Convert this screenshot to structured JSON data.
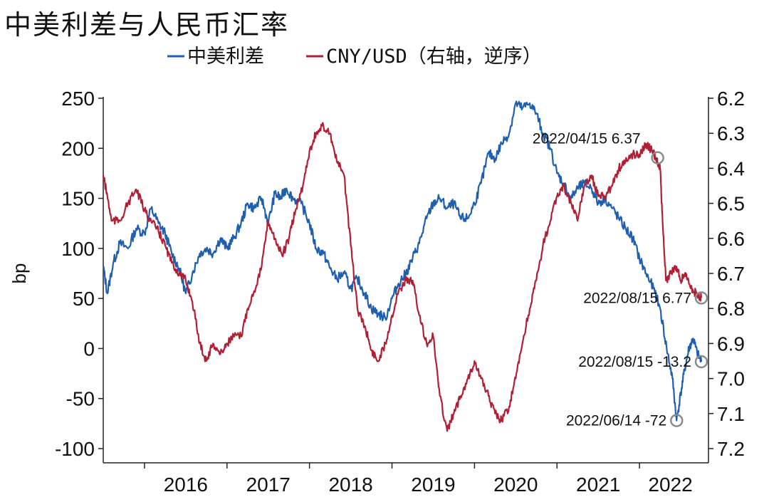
{
  "title": "中美利差与人民币汇率",
  "chart_data": {
    "type": "line",
    "title": "中美利差与人民币汇率",
    "ylabel": "bp",
    "ylim": [
      -100,
      250
    ],
    "yticks": [
      250,
      200,
      150,
      100,
      50,
      0,
      -50,
      -100
    ],
    "y2lim": [
      6.2,
      7.2
    ],
    "y2_inverted": true,
    "y2ticks": [
      "6.2",
      "6.3",
      "6.4",
      "6.5",
      "6.6",
      "6.7",
      "6.8",
      "6.9",
      "7.0",
      "7.1",
      "7.2"
    ],
    "x_range": [
      2015.5,
      2022.75
    ],
    "xticks": [
      "2016",
      "2017",
      "2018",
      "2019",
      "2020",
      "2021",
      "2022"
    ],
    "xtick_positions": [
      2016,
      2017,
      2018,
      2019,
      2020,
      2021,
      2022
    ],
    "grid": false,
    "legend_placement": "top-center",
    "series": [
      {
        "name": "中美利差",
        "axis": "left",
        "color": "#1f5fb0",
        "points": [
          [
            2015.5,
            82
          ],
          [
            2015.55,
            55
          ],
          [
            2015.62,
            85
          ],
          [
            2015.7,
            105
          ],
          [
            2015.8,
            100
          ],
          [
            2015.9,
            120
          ],
          [
            2016.0,
            115
          ],
          [
            2016.08,
            140
          ],
          [
            2016.17,
            125
          ],
          [
            2016.25,
            115
          ],
          [
            2016.33,
            95
          ],
          [
            2016.42,
            80
          ],
          [
            2016.5,
            55
          ],
          [
            2016.58,
            75
          ],
          [
            2016.67,
            95
          ],
          [
            2016.75,
            100
          ],
          [
            2016.83,
            95
          ],
          [
            2016.92,
            110
          ],
          [
            2017.0,
            100
          ],
          [
            2017.08,
            110
          ],
          [
            2017.17,
            125
          ],
          [
            2017.25,
            145
          ],
          [
            2017.33,
            140
          ],
          [
            2017.42,
            150
          ],
          [
            2017.5,
            125
          ],
          [
            2017.58,
            155
          ],
          [
            2017.65,
            150
          ],
          [
            2017.72,
            160
          ],
          [
            2017.8,
            150
          ],
          [
            2017.9,
            145
          ],
          [
            2018.0,
            125
          ],
          [
            2018.08,
            100
          ],
          [
            2018.17,
            95
          ],
          [
            2018.25,
            80
          ],
          [
            2018.33,
            70
          ],
          [
            2018.42,
            75
          ],
          [
            2018.5,
            60
          ],
          [
            2018.58,
            70
          ],
          [
            2018.67,
            55
          ],
          [
            2018.75,
            40
          ],
          [
            2018.83,
            35
          ],
          [
            2018.92,
            30
          ],
          [
            2019.0,
            50
          ],
          [
            2019.08,
            65
          ],
          [
            2019.17,
            75
          ],
          [
            2019.25,
            90
          ],
          [
            2019.33,
            105
          ],
          [
            2019.42,
            130
          ],
          [
            2019.5,
            145
          ],
          [
            2019.58,
            150
          ],
          [
            2019.67,
            140
          ],
          [
            2019.75,
            145
          ],
          [
            2019.83,
            130
          ],
          [
            2019.92,
            130
          ],
          [
            2020.0,
            145
          ],
          [
            2020.08,
            165
          ],
          [
            2020.17,
            195
          ],
          [
            2020.25,
            190
          ],
          [
            2020.33,
            205
          ],
          [
            2020.42,
            215
          ],
          [
            2020.5,
            245
          ],
          [
            2020.58,
            240
          ],
          [
            2020.67,
            245
          ],
          [
            2020.75,
            235
          ],
          [
            2020.83,
            215
          ],
          [
            2020.92,
            200
          ],
          [
            2021.0,
            175
          ],
          [
            2021.08,
            165
          ],
          [
            2021.17,
            150
          ],
          [
            2021.25,
            160
          ],
          [
            2021.33,
            165
          ],
          [
            2021.42,
            160
          ],
          [
            2021.5,
            145
          ],
          [
            2021.58,
            150
          ],
          [
            2021.67,
            140
          ],
          [
            2021.75,
            130
          ],
          [
            2021.83,
            120
          ],
          [
            2021.92,
            110
          ],
          [
            2022.0,
            90
          ],
          [
            2022.08,
            75
          ],
          [
            2022.17,
            60
          ],
          [
            2022.25,
            40
          ],
          [
            2022.33,
            0
          ],
          [
            2022.4,
            -30
          ],
          [
            2022.45,
            -72
          ],
          [
            2022.5,
            -45
          ],
          [
            2022.55,
            -20
          ],
          [
            2022.6,
            0
          ],
          [
            2022.65,
            10
          ],
          [
            2022.7,
            -5
          ],
          [
            2022.75,
            -13.2
          ]
        ]
      },
      {
        "name": "CNY/USD（右轴，逆序）",
        "axis": "right",
        "color": "#b01f34",
        "points": [
          [
            2015.5,
            6.42
          ],
          [
            2015.55,
            6.48
          ],
          [
            2015.6,
            6.55
          ],
          [
            2015.7,
            6.55
          ],
          [
            2015.8,
            6.5
          ],
          [
            2015.9,
            6.46
          ],
          [
            2016.0,
            6.52
          ],
          [
            2016.08,
            6.55
          ],
          [
            2016.17,
            6.58
          ],
          [
            2016.25,
            6.62
          ],
          [
            2016.33,
            6.67
          ],
          [
            2016.42,
            6.7
          ],
          [
            2016.5,
            6.72
          ],
          [
            2016.58,
            6.78
          ],
          [
            2016.67,
            6.9
          ],
          [
            2016.75,
            6.95
          ],
          [
            2016.83,
            6.9
          ],
          [
            2016.92,
            6.93
          ],
          [
            2017.0,
            6.9
          ],
          [
            2017.08,
            6.88
          ],
          [
            2017.17,
            6.88
          ],
          [
            2017.25,
            6.8
          ],
          [
            2017.33,
            6.75
          ],
          [
            2017.42,
            6.68
          ],
          [
            2017.5,
            6.55
          ],
          [
            2017.58,
            6.6
          ],
          [
            2017.67,
            6.65
          ],
          [
            2017.75,
            6.6
          ],
          [
            2017.83,
            6.52
          ],
          [
            2017.92,
            6.45
          ],
          [
            2018.0,
            6.35
          ],
          [
            2018.08,
            6.3
          ],
          [
            2018.17,
            6.28
          ],
          [
            2018.25,
            6.3
          ],
          [
            2018.33,
            6.38
          ],
          [
            2018.42,
            6.42
          ],
          [
            2018.5,
            6.62
          ],
          [
            2018.58,
            6.8
          ],
          [
            2018.67,
            6.85
          ],
          [
            2018.75,
            6.92
          ],
          [
            2018.83,
            6.95
          ],
          [
            2018.92,
            6.9
          ],
          [
            2019.0,
            6.82
          ],
          [
            2019.08,
            6.75
          ],
          [
            2019.17,
            6.72
          ],
          [
            2019.25,
            6.72
          ],
          [
            2019.33,
            6.82
          ],
          [
            2019.42,
            6.9
          ],
          [
            2019.5,
            6.88
          ],
          [
            2019.58,
            7.05
          ],
          [
            2019.67,
            7.15
          ],
          [
            2019.75,
            7.1
          ],
          [
            2019.83,
            7.05
          ],
          [
            2019.92,
            7.0
          ],
          [
            2020.0,
            6.95
          ],
          [
            2020.08,
            7.0
          ],
          [
            2020.17,
            7.05
          ],
          [
            2020.25,
            7.1
          ],
          [
            2020.33,
            7.12
          ],
          [
            2020.42,
            7.08
          ],
          [
            2020.5,
            7.0
          ],
          [
            2020.58,
            6.9
          ],
          [
            2020.67,
            6.8
          ],
          [
            2020.75,
            6.72
          ],
          [
            2020.83,
            6.62
          ],
          [
            2020.92,
            6.55
          ],
          [
            2021.0,
            6.48
          ],
          [
            2021.08,
            6.45
          ],
          [
            2021.17,
            6.5
          ],
          [
            2021.25,
            6.55
          ],
          [
            2021.33,
            6.45
          ],
          [
            2021.42,
            6.42
          ],
          [
            2021.5,
            6.48
          ],
          [
            2021.58,
            6.48
          ],
          [
            2021.67,
            6.45
          ],
          [
            2021.75,
            6.4
          ],
          [
            2021.83,
            6.38
          ],
          [
            2021.92,
            6.36
          ],
          [
            2022.0,
            6.36
          ],
          [
            2022.08,
            6.33
          ],
          [
            2022.15,
            6.35
          ],
          [
            2022.2,
            6.37
          ],
          [
            2022.25,
            6.4
          ],
          [
            2022.28,
            6.55
          ],
          [
            2022.32,
            6.72
          ],
          [
            2022.38,
            6.7
          ],
          [
            2022.45,
            6.68
          ],
          [
            2022.5,
            6.72
          ],
          [
            2022.55,
            6.7
          ],
          [
            2022.6,
            6.73
          ],
          [
            2022.65,
            6.75
          ],
          [
            2022.7,
            6.76
          ],
          [
            2022.75,
            6.77
          ]
        ]
      }
    ],
    "annotations": [
      {
        "text": "2022/04/15 6.37",
        "axis": "right",
        "x": 2022.22,
        "y": 6.37,
        "label_side": "left-above"
      },
      {
        "text": "2022/08/15 6.77",
        "axis": "right",
        "x": 2022.75,
        "y": 6.77,
        "label_side": "left"
      },
      {
        "text": "2022/08/15 -13.2",
        "axis": "left",
        "x": 2022.75,
        "y": -13.2,
        "label_side": "left"
      },
      {
        "text": "2022/06/14 -72",
        "axis": "left",
        "x": 2022.45,
        "y": -72,
        "label_side": "left"
      }
    ]
  }
}
